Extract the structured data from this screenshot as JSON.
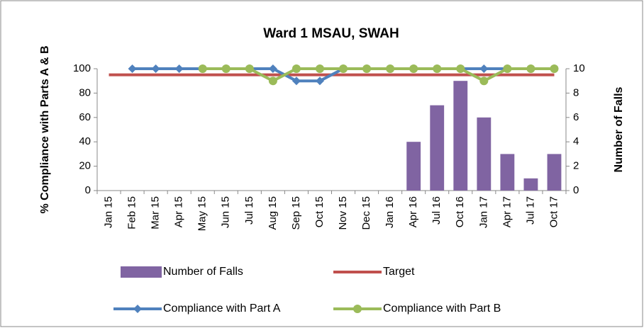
{
  "chart_data": {
    "type": "bar-line",
    "title": "Ward 1 MSAU, SWAH",
    "y_label": "% Compliance with Parts A & B",
    "y2_label": "Number of Falls",
    "categories": [
      "Jan 15",
      "Feb 15",
      "Mar 15",
      "Apr 15",
      "May 15",
      "Jun 15",
      "Jul 15",
      "Aug 15",
      "Sep 15",
      "Oct 15",
      "Nov 15",
      "Dec 15",
      "Jan 16",
      "Apr 16",
      "Jul 16",
      "Oct 16",
      "Jan 17",
      "Apr 17",
      "Jul 17",
      "Oct 17"
    ],
    "ylim": [
      0,
      100
    ],
    "yticks": [
      0,
      20,
      40,
      60,
      80,
      100
    ],
    "y2lim": [
      0,
      10
    ],
    "y2ticks": [
      0,
      2,
      4,
      6,
      8,
      10
    ],
    "series": [
      {
        "name": "Number of Falls",
        "type": "bar",
        "axis": "y2",
        "color": "#8064a2",
        "values": [
          null,
          null,
          null,
          null,
          null,
          null,
          null,
          null,
          null,
          null,
          null,
          null,
          null,
          4,
          7,
          9,
          6,
          3,
          1,
          3
        ]
      },
      {
        "name": "Target",
        "type": "line",
        "color": "#c0504d",
        "values": [
          95,
          95,
          95,
          95,
          95,
          95,
          95,
          95,
          95,
          95,
          95,
          95,
          95,
          95,
          95,
          95,
          95,
          95,
          95,
          95
        ]
      },
      {
        "name": "Compliance with Part A",
        "type": "line",
        "marker": "diamond",
        "color": "#4f81bd",
        "values": [
          null,
          100,
          100,
          100,
          100,
          100,
          100,
          100,
          90,
          90,
          100,
          100,
          100,
          100,
          100,
          100,
          100,
          100,
          100,
          100
        ]
      },
      {
        "name": "Compliance with Part B",
        "type": "line",
        "marker": "circle",
        "color": "#9bbb59",
        "values": [
          null,
          null,
          null,
          null,
          100,
          100,
          100,
          90,
          100,
          100,
          100,
          100,
          100,
          100,
          100,
          100,
          90,
          100,
          100,
          100
        ]
      }
    ]
  }
}
